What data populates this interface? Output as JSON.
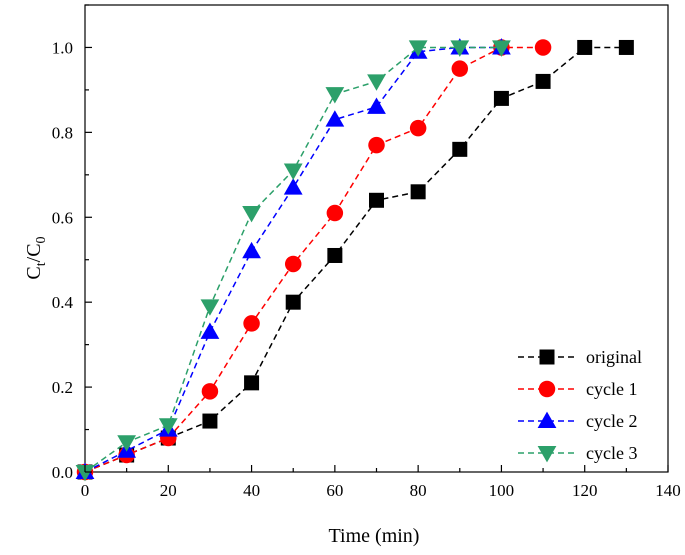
{
  "chart_data": {
    "type": "line",
    "xlabel": "Time (min)",
    "ylabel_main": "C",
    "ylabel_sub1": "t",
    "ylabel_slash": "/C",
    "ylabel_sub2": "0",
    "xlim": [
      0,
      140
    ],
    "ylim": [
      0.0,
      1.1
    ],
    "xticks": [
      0,
      20,
      40,
      60,
      80,
      100,
      120,
      140
    ],
    "yticks": [
      0.0,
      0.2,
      0.4,
      0.6,
      0.8,
      1.0
    ],
    "xtick_labels": [
      "0",
      "20",
      "40",
      "60",
      "80",
      "100",
      "120",
      "140"
    ],
    "ytick_labels": [
      "0.0",
      "0.2",
      "0.4",
      "0.6",
      "0.8",
      "1.0"
    ],
    "grid": false,
    "legend_position": "bottom-right",
    "series": [
      {
        "name": "original",
        "color": "#000000",
        "marker": "square",
        "x": [
          0,
          10,
          20,
          30,
          40,
          50,
          60,
          70,
          80,
          90,
          100,
          110,
          120,
          130
        ],
        "y": [
          0.0,
          0.04,
          0.08,
          0.12,
          0.21,
          0.4,
          0.51,
          0.64,
          0.66,
          0.76,
          0.88,
          0.92,
          1.0,
          1.0
        ]
      },
      {
        "name": "cycle 1",
        "color": "#ff0000",
        "marker": "circle",
        "x": [
          0,
          10,
          20,
          30,
          40,
          50,
          60,
          70,
          80,
          90,
          100,
          110
        ],
        "y": [
          0.0,
          0.04,
          0.08,
          0.19,
          0.35,
          0.49,
          0.61,
          0.77,
          0.81,
          0.95,
          1.0,
          1.0
        ]
      },
      {
        "name": "cycle 2",
        "color": "#0000ff",
        "marker": "triangle-up",
        "x": [
          0,
          10,
          20,
          30,
          40,
          50,
          60,
          70,
          80,
          90,
          100
        ],
        "y": [
          0.0,
          0.05,
          0.1,
          0.33,
          0.52,
          0.67,
          0.83,
          0.86,
          0.99,
          1.0,
          1.0
        ]
      },
      {
        "name": "cycle 3",
        "color": "#2ca06a",
        "marker": "triangle-down",
        "x": [
          0,
          10,
          20,
          30,
          40,
          50,
          60,
          70,
          80,
          90,
          100
        ],
        "y": [
          0.0,
          0.07,
          0.11,
          0.39,
          0.61,
          0.71,
          0.89,
          0.92,
          1.0,
          1.0,
          1.0
        ]
      }
    ]
  }
}
